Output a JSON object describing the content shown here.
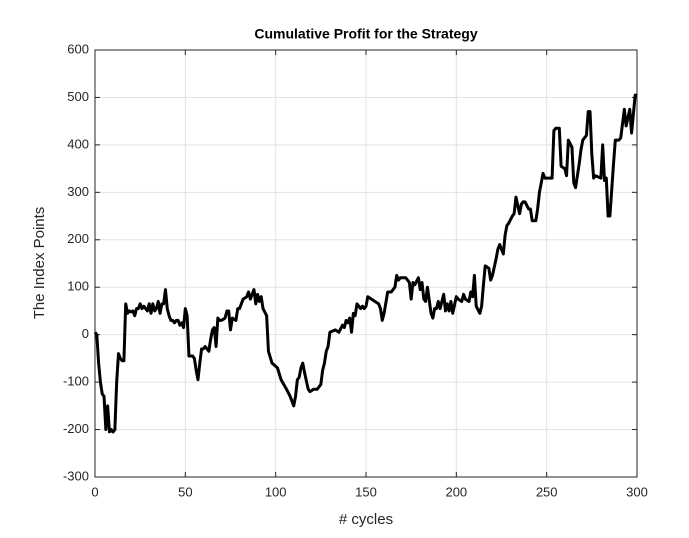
{
  "chart_data": {
    "type": "line",
    "title": "Cumulative Profit for the Strategy",
    "x_label": "# cycles",
    "y_label": "The Index Points",
    "x": [
      0,
      1,
      2,
      3,
      4,
      5,
      6,
      7,
      8,
      9,
      10,
      11,
      12,
      13,
      14,
      15,
      16,
      17,
      18,
      19,
      20,
      21,
      22,
      23,
      24,
      25,
      26,
      27,
      28,
      29,
      30,
      31,
      32,
      33,
      34,
      35,
      36,
      37,
      38,
      39,
      40,
      41,
      42,
      43,
      44,
      45,
      46,
      47,
      48,
      49,
      50,
      51,
      52,
      53,
      54,
      55,
      56,
      57,
      58,
      59,
      60,
      61,
      62,
      63,
      64,
      65,
      66,
      67,
      68,
      69,
      70,
      72,
      73,
      74,
      75,
      76,
      78,
      79,
      80,
      82,
      84,
      85,
      86,
      88,
      89,
      90,
      91,
      92,
      93,
      95,
      96,
      98,
      101,
      103,
      106,
      108,
      110,
      111,
      112,
      113,
      114,
      115,
      116,
      118,
      119,
      121,
      123,
      125,
      126,
      127,
      128,
      129,
      130,
      133,
      135,
      137,
      138,
      139,
      140,
      141,
      142,
      143,
      144,
      145,
      147,
      148,
      149,
      150,
      151,
      153,
      155,
      157,
      158,
      159,
      160,
      162,
      164,
      166,
      167,
      168,
      169,
      172,
      174,
      175,
      176,
      177,
      179,
      180,
      181,
      182,
      183,
      184,
      186,
      187,
      188,
      189,
      190,
      191,
      193,
      194,
      195,
      196,
      197,
      198,
      200,
      201,
      203,
      204,
      205,
      207,
      208,
      209,
      210,
      211,
      213,
      214,
      215,
      216,
      218,
      219,
      220,
      222,
      223,
      224,
      226,
      227,
      228,
      229,
      231,
      232,
      233,
      235,
      236,
      237,
      238,
      240,
      241,
      242,
      244,
      245,
      246,
      248,
      249,
      251,
      253,
      254,
      255,
      257,
      258,
      260,
      261,
      262,
      264,
      265,
      266,
      268,
      269,
      270,
      272,
      273,
      274,
      275,
      276,
      277,
      280,
      281,
      282,
      283,
      284,
      285,
      287,
      288,
      290,
      291,
      293,
      294,
      296,
      297,
      299,
      300
    ],
    "series": [
      {
        "name": "Cumulative Profit",
        "color": "#000000",
        "values": [
          5,
          0,
          -60,
          -100,
          -125,
          -130,
          -200,
          -150,
          -205,
          -200,
          -205,
          -200,
          -100,
          -40,
          -50,
          -55,
          -55,
          65,
          45,
          50,
          48,
          50,
          40,
          55,
          55,
          65,
          55,
          60,
          55,
          50,
          65,
          45,
          65,
          50,
          55,
          70,
          45,
          65,
          65,
          95,
          55,
          40,
          30,
          30,
          25,
          30,
          30,
          20,
          25,
          15,
          55,
          40,
          -45,
          -45,
          -45,
          -50,
          -75,
          -95,
          -60,
          -30,
          -30,
          -25,
          -30,
          -35,
          -10,
          10,
          15,
          -25,
          35,
          30,
          30,
          35,
          50,
          50,
          10,
          35,
          30,
          55,
          55,
          75,
          80,
          90,
          75,
          95,
          65,
          85,
          70,
          80,
          55,
          40,
          -35,
          -60,
          -70,
          -95,
          -115,
          -130,
          -150,
          -130,
          -95,
          -90,
          -70,
          -60,
          -80,
          -115,
          -120,
          -115,
          -115,
          -105,
          -75,
          -60,
          -35,
          -25,
          5,
          10,
          5,
          20,
          15,
          30,
          25,
          35,
          5,
          45,
          40,
          65,
          55,
          60,
          55,
          60,
          80,
          75,
          70,
          65,
          55,
          30,
          45,
          90,
          90,
          100,
          125,
          115,
          120,
          120,
          110,
          75,
          110,
          105,
          120,
          95,
          110,
          75,
          70,
          100,
          45,
          35,
          55,
          55,
          70,
          55,
          85,
          50,
          65,
          50,
          70,
          45,
          80,
          75,
          70,
          85,
          75,
          70,
          90,
          80,
          125,
          60,
          45,
          60,
          105,
          145,
          140,
          115,
          125,
          160,
          180,
          190,
          170,
          210,
          230,
          235,
          250,
          255,
          290,
          255,
          275,
          280,
          280,
          265,
          265,
          240,
          240,
          265,
          300,
          340,
          330,
          330,
          330,
          430,
          435,
          435,
          355,
          350,
          335,
          410,
          395,
          320,
          310,
          360,
          390,
          410,
          420,
          470,
          470,
          380,
          330,
          335,
          330,
          400,
          325,
          330,
          250,
          250,
          360,
          410,
          410,
          415,
          475,
          440,
          475,
          425,
          505,
          505
        ]
      }
    ],
    "xlim": [
      0,
      300
    ],
    "xticks": [
      0,
      50,
      100,
      150,
      200,
      250,
      300
    ],
    "ylim": [
      -300,
      600
    ],
    "yticks": [
      -300,
      -200,
      -100,
      0,
      100,
      200,
      300,
      400,
      500,
      600
    ],
    "grid": true
  }
}
